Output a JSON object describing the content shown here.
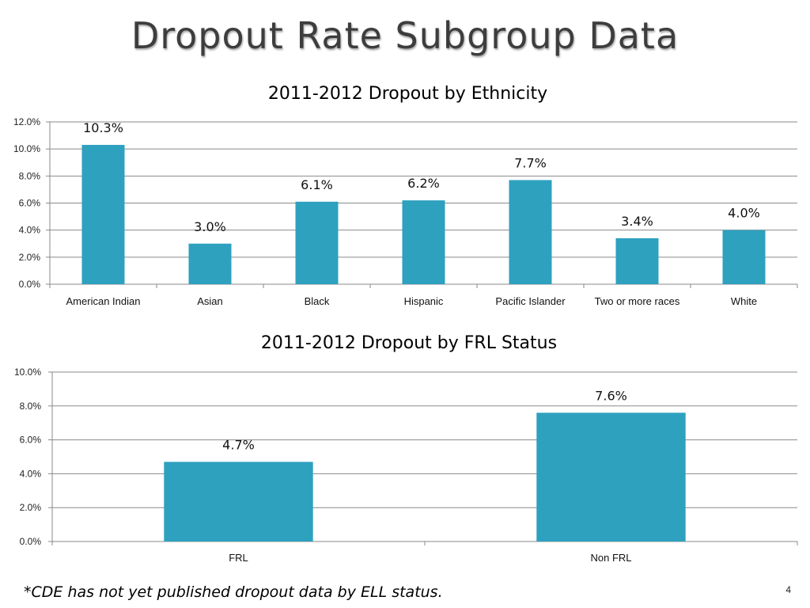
{
  "slide": {
    "title": "Dropout Rate Subgroup Data",
    "footnote": "*CDE has not yet published dropout data by ELL status.",
    "page_number": "4"
  },
  "chart_data": [
    {
      "type": "bar",
      "title": "2011-2012 Dropout by Ethnicity",
      "categories": [
        "American Indian",
        "Asian",
        "Black",
        "Hispanic",
        "Pacific Islander",
        "Two or more races",
        "White"
      ],
      "values": [
        10.3,
        3.0,
        6.1,
        6.2,
        7.7,
        3.4,
        4.0
      ],
      "data_labels": [
        "10.3%",
        "3.0%",
        "6.1%",
        "6.2%",
        "7.7%",
        "3.4%",
        "4.0%"
      ],
      "yticks": [
        "0.0%",
        "2.0%",
        "4.0%",
        "6.0%",
        "8.0%",
        "10.0%",
        "12.0%"
      ],
      "ylim": [
        0,
        12
      ],
      "ytick_step": 2,
      "xlabel": "",
      "ylabel": "",
      "grid": true,
      "bar_color": "#2ea1bf"
    },
    {
      "type": "bar",
      "title": "2011-2012 Dropout by FRL Status",
      "categories": [
        "FRL",
        "Non FRL"
      ],
      "values": [
        4.7,
        7.6
      ],
      "data_labels": [
        "4.7%",
        "7.6%"
      ],
      "yticks": [
        "0.0%",
        "2.0%",
        "4.0%",
        "6.0%",
        "8.0%",
        "10.0%"
      ],
      "ylim": [
        0,
        10
      ],
      "ytick_step": 2,
      "xlabel": "",
      "ylabel": "",
      "grid": true,
      "bar_color": "#2ea1bf"
    }
  ]
}
